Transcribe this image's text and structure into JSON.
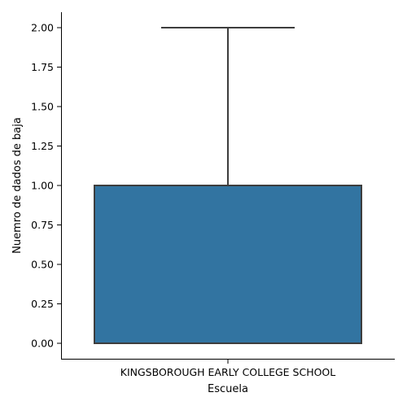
{
  "chart_data": {
    "type": "box",
    "title": "",
    "xlabel": "Escuela",
    "ylabel": "Nuemro de dados de baja",
    "categories": [
      "KINGSBOROUGH EARLY COLLEGE SCHOOL"
    ],
    "boxes": [
      {
        "category": "KINGSBOROUGH EARLY COLLEGE SCHOOL",
        "whisker_low": 0.0,
        "q1": 0.0,
        "median": 0.0,
        "q3": 1.0,
        "whisker_high": 2.0
      }
    ],
    "yticks": [
      0.0,
      0.25,
      0.5,
      0.75,
      1.0,
      1.25,
      1.5,
      1.75,
      2.0
    ],
    "ytick_labels": [
      "0.00",
      "0.25",
      "0.50",
      "0.75",
      "1.00",
      "1.25",
      "1.50",
      "1.75",
      "2.00"
    ],
    "ylim": [
      -0.1,
      2.1
    ],
    "grid": false,
    "box_color": "#3274a1",
    "line_color": "#3d3d3d"
  }
}
